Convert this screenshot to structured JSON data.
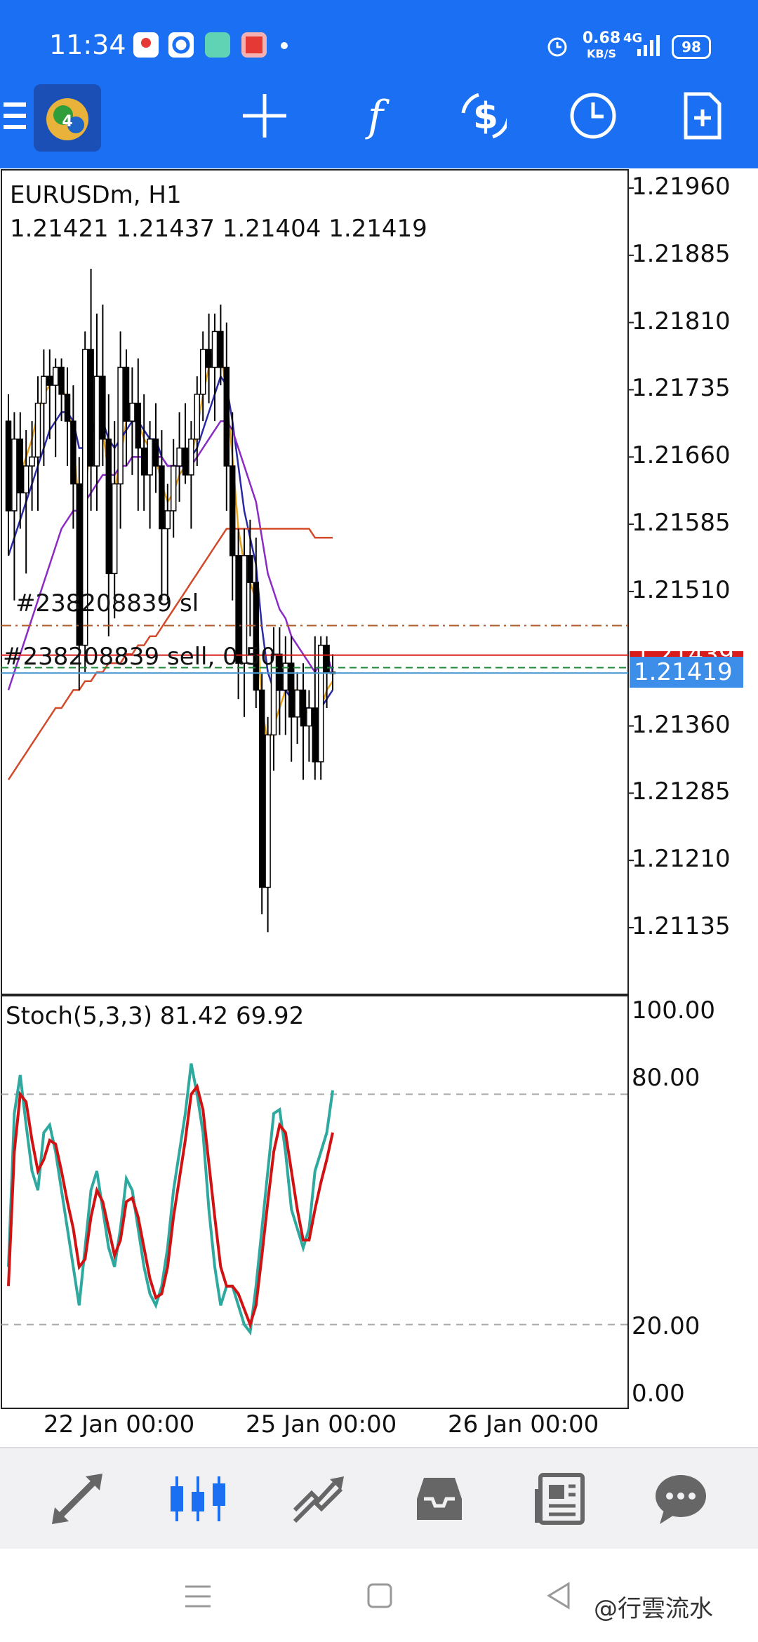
{
  "status_bar": {
    "time": "11:34",
    "net_speed": "0.68",
    "net_unit": "KB/S",
    "network": "4G",
    "battery": "98",
    "icons": [
      "maps-icon",
      "browser-icon",
      "app-icon",
      "gallery-icon",
      "dot-icon",
      "alarm-icon",
      "signal-icon"
    ]
  },
  "toolbar": {
    "icons": [
      "menu-icon",
      "mt4-logo-icon",
      "crosshair-icon",
      "indicators-icon",
      "timeframe-icon",
      "clock-icon",
      "new-order-icon"
    ]
  },
  "chart": {
    "symbol": "EURUSDm, H1",
    "ohlc": "1.21421 1.21437 1.21404 1.21419",
    "current_price": "1.21419",
    "hidden_price": "1.21439",
    "sl_label": "#238208839 sl",
    "order_label": "#238208839 sell, 0.50",
    "price_axis": [
      "1.21960",
      "1.21885",
      "1.21810",
      "1.21735",
      "1.21660",
      "1.21585",
      "1.21510",
      "1.21360",
      "1.21285",
      "1.21210",
      "1.21135"
    ],
    "date_axis": [
      "22 Jan 00:00",
      "25 Jan 00:00",
      "26 Jan 00:00"
    ],
    "colors": {
      "up": "#ffffff",
      "down": "#000000",
      "ma_fast": "#e8a21a",
      "ma_mid": "#2a2aa6",
      "ma_slow": "#8a2bc4",
      "ma_long": "#d24a2a",
      "sl_line": "#b05a2a",
      "order_line": "#d81b1b"
    }
  },
  "stochastic": {
    "title": "Stoch(5,3,3) 81.42 69.92",
    "axis": [
      "100.00",
      "80.00",
      "20.00",
      "0.00"
    ],
    "main_color": "#2ea9a0",
    "signal_color": "#d01212"
  },
  "chart_data": {
    "type": "line",
    "xlabel": "",
    "ylabel": "",
    "x_ticks": [
      "22 Jan 00:00",
      "25 Jan 00:00",
      "26 Jan 00:00"
    ],
    "ylim": [
      1.2109,
      1.2201
    ],
    "price_ticks": [
      1.2196,
      1.21885,
      1.2181,
      1.21735,
      1.2166,
      1.21585,
      1.2151,
      1.21435,
      1.2136,
      1.21285,
      1.2121,
      1.21135
    ],
    "stochastic_ylim": [
      0,
      100
    ],
    "stochastic_levels": [
      80,
      20
    ],
    "candles": [
      [
        1.217,
        1.2173,
        1.2155,
        1.216
      ],
      [
        1.216,
        1.2171,
        1.215,
        1.2168
      ],
      [
        1.2168,
        1.2171,
        1.2158,
        1.2162
      ],
      [
        1.2162,
        1.2169,
        1.2153,
        1.2165
      ],
      [
        1.2165,
        1.217,
        1.216,
        1.2166
      ],
      [
        1.2166,
        1.2175,
        1.216,
        1.2172
      ],
      [
        1.2172,
        1.2178,
        1.2165,
        1.2175
      ],
      [
        1.2175,
        1.2178,
        1.2168,
        1.2174
      ],
      [
        1.2174,
        1.2177,
        1.2166,
        1.2176
      ],
      [
        1.2176,
        1.2177,
        1.217,
        1.2173
      ],
      [
        1.2173,
        1.2176,
        1.2165,
        1.217
      ],
      [
        1.217,
        1.2174,
        1.2158,
        1.2163
      ],
      [
        1.2163,
        1.2166,
        1.214,
        1.2145
      ],
      [
        1.2145,
        1.218,
        1.2142,
        1.2178
      ],
      [
        1.2178,
        1.2187,
        1.216,
        1.2165
      ],
      [
        1.2165,
        1.2182,
        1.216,
        1.2175
      ],
      [
        1.2175,
        1.2183,
        1.2165,
        1.2168
      ],
      [
        1.2168,
        1.2173,
        1.2146,
        1.2153
      ],
      [
        1.2153,
        1.217,
        1.2148,
        1.2163
      ],
      [
        1.2163,
        1.218,
        1.2158,
        1.2176
      ],
      [
        1.2176,
        1.2178,
        1.2165,
        1.217
      ],
      [
        1.217,
        1.2176,
        1.2164,
        1.2172
      ],
      [
        1.2172,
        1.2177,
        1.216,
        1.2167
      ],
      [
        1.2167,
        1.2173,
        1.216,
        1.2164
      ],
      [
        1.2164,
        1.217,
        1.2158,
        1.2168
      ],
      [
        1.2168,
        1.2172,
        1.2162,
        1.2165
      ],
      [
        1.2165,
        1.2169,
        1.215,
        1.2158
      ],
      [
        1.2158,
        1.2163,
        1.215,
        1.216
      ],
      [
        1.216,
        1.2168,
        1.2157,
        1.2165
      ],
      [
        1.2165,
        1.2171,
        1.2161,
        1.2167
      ],
      [
        1.2167,
        1.2172,
        1.2163,
        1.2164
      ],
      [
        1.2164,
        1.217,
        1.2158,
        1.2168
      ],
      [
        1.2168,
        1.2175,
        1.2165,
        1.2173
      ],
      [
        1.2173,
        1.218,
        1.217,
        1.2178
      ],
      [
        1.2178,
        1.2182,
        1.2172,
        1.2176
      ],
      [
        1.2176,
        1.2182,
        1.217,
        1.218
      ],
      [
        1.218,
        1.2183,
        1.2174,
        1.2176
      ],
      [
        1.2176,
        1.2181,
        1.216,
        1.2165
      ],
      [
        1.2165,
        1.2171,
        1.215,
        1.2155
      ],
      [
        1.2155,
        1.2158,
        1.2139,
        1.2143
      ],
      [
        1.2143,
        1.2158,
        1.2137,
        1.2155
      ],
      [
        1.2155,
        1.2159,
        1.2146,
        1.2152
      ],
      [
        1.2152,
        1.2157,
        1.2138,
        1.214
      ],
      [
        1.214,
        1.2142,
        1.2115,
        1.2118
      ],
      [
        1.2118,
        1.2137,
        1.2113,
        1.2135
      ],
      [
        1.2135,
        1.2147,
        1.2131,
        1.2144
      ],
      [
        1.2144,
        1.2147,
        1.2135,
        1.214
      ],
      [
        1.214,
        1.2146,
        1.2135,
        1.2143
      ],
      [
        1.2143,
        1.2146,
        1.2132,
        1.2137
      ],
      [
        1.2137,
        1.2142,
        1.2134,
        1.214
      ],
      [
        1.214,
        1.2143,
        1.213,
        1.2136
      ],
      [
        1.2136,
        1.214,
        1.2132,
        1.2138
      ],
      [
        1.2138,
        1.2146,
        1.213,
        1.2132
      ],
      [
        1.2132,
        1.2146,
        1.213,
        1.2145
      ],
      [
        1.2145,
        1.2146,
        1.2138,
        1.2142
      ],
      [
        1.2142,
        1.2144,
        1.214,
        1.2142
      ]
    ],
    "series": [
      {
        "values": [
          1.216,
          1.2163,
          1.2164,
          1.2166,
          1.2168,
          1.2171,
          1.2173,
          1.2174,
          1.2175,
          1.2174,
          1.2172,
          1.2168,
          1.216,
          1.2162,
          1.2168,
          1.217,
          1.2169,
          1.2164,
          1.2162,
          1.2166,
          1.217,
          1.2171,
          1.217,
          1.2168,
          1.2167,
          1.2166,
          1.2163,
          1.2161,
          1.2162,
          1.2164,
          1.2165,
          1.2166,
          1.2169,
          1.2173,
          1.2176,
          1.2178,
          1.2178,
          1.2173,
          1.2166,
          1.2158,
          1.2154,
          1.2152,
          1.215,
          1.2138,
          1.2134,
          1.2136,
          1.2138,
          1.214,
          1.214,
          1.214,
          1.2138,
          1.2137,
          1.2136,
          1.2138,
          1.214,
          1.2141
        ]
      },
      {
        "values": [
          1.2155,
          1.2157,
          1.2159,
          1.2161,
          1.2163,
          1.2165,
          1.2167,
          1.2169,
          1.217,
          1.2171,
          1.2171,
          1.217,
          1.2167,
          1.2167,
          1.2169,
          1.217,
          1.217,
          1.2168,
          1.2167,
          1.2168,
          1.2169,
          1.217,
          1.217,
          1.2169,
          1.2168,
          1.2168,
          1.2166,
          1.2165,
          1.2165,
          1.2165,
          1.2165,
          1.2166,
          1.2167,
          1.2169,
          1.2171,
          1.2173,
          1.2175,
          1.2174,
          1.217,
          1.2165,
          1.216,
          1.2157,
          1.2154,
          1.2147,
          1.2142,
          1.214,
          1.214,
          1.214,
          1.2139,
          1.2139,
          1.2138,
          1.2138,
          1.2137,
          1.2138,
          1.2139,
          1.214
        ]
      },
      {
        "values": [
          1.214,
          1.2142,
          1.2144,
          1.2146,
          1.2148,
          1.215,
          1.2152,
          1.2154,
          1.2156,
          1.2158,
          1.2159,
          1.216,
          1.216,
          1.2161,
          1.2162,
          1.2163,
          1.2164,
          1.2164,
          1.2164,
          1.2165,
          1.2165,
          1.2166,
          1.2166,
          1.2166,
          1.2166,
          1.2166,
          1.2166,
          1.2165,
          1.2165,
          1.2165,
          1.2165,
          1.2165,
          1.2166,
          1.2167,
          1.2168,
          1.2169,
          1.217,
          1.217,
          1.2169,
          1.2167,
          1.2165,
          1.2163,
          1.2161,
          1.2157,
          1.2153,
          1.2151,
          1.2149,
          1.2148,
          1.2146,
          1.2145,
          1.2144,
          1.2143,
          1.2142,
          1.2143,
          1.2144,
          1.2142
        ]
      },
      {
        "values": [
          1.213,
          1.2131,
          1.2132,
          1.2133,
          1.2134,
          1.2135,
          1.2136,
          1.2137,
          1.2138,
          1.2138,
          1.2139,
          1.214,
          1.214,
          1.2141,
          1.2141,
          1.2142,
          1.2142,
          1.2143,
          1.2143,
          1.2143,
          1.2144,
          1.2144,
          1.2145,
          1.2145,
          1.2146,
          1.2146,
          1.2147,
          1.2148,
          1.2149,
          1.215,
          1.2151,
          1.2152,
          1.2153,
          1.2154,
          1.2155,
          1.2156,
          1.2157,
          1.2158,
          1.2158,
          1.2158,
          1.2158,
          1.2158,
          1.2158,
          1.2158,
          1.2158,
          1.2158,
          1.2158,
          1.2158,
          1.2158,
          1.2158,
          1.2158,
          1.2158,
          1.2157,
          1.2157,
          1.2157,
          1.2157
        ]
      },
      {
        "values": [
          35,
          75,
          85,
          72,
          60,
          55,
          70,
          72,
          65,
          55,
          45,
          35,
          25,
          40,
          55,
          60,
          50,
          40,
          35,
          45,
          58,
          55,
          45,
          35,
          28,
          25,
          30,
          40,
          55,
          65,
          75,
          88,
          80,
          70,
          50,
          35,
          25,
          30,
          30,
          25,
          20,
          18,
          30,
          45,
          60,
          75,
          76,
          65,
          50,
          45,
          40,
          45,
          60,
          65,
          70,
          81
        ]
      },
      {
        "values": [
          30,
          65,
          80,
          78,
          68,
          60,
          63,
          68,
          67,
          60,
          52,
          45,
          35,
          37,
          48,
          55,
          52,
          45,
          38,
          42,
          52,
          53,
          48,
          40,
          32,
          27,
          28,
          35,
          48,
          58,
          68,
          80,
          82,
          76,
          62,
          48,
          35,
          30,
          30,
          28,
          24,
          20,
          25,
          38,
          52,
          65,
          72,
          70,
          60,
          50,
          42,
          42,
          50,
          57,
          63,
          70
        ]
      }
    ]
  },
  "bottom_nav": {
    "items": [
      "quotes-icon",
      "chart-icon",
      "trade-icon",
      "history-icon",
      "news-icon",
      "chat-icon"
    ]
  },
  "system_nav": {
    "items": [
      "recents-icon",
      "home-icon",
      "back-icon"
    ],
    "watermark": "@行雲流水"
  }
}
